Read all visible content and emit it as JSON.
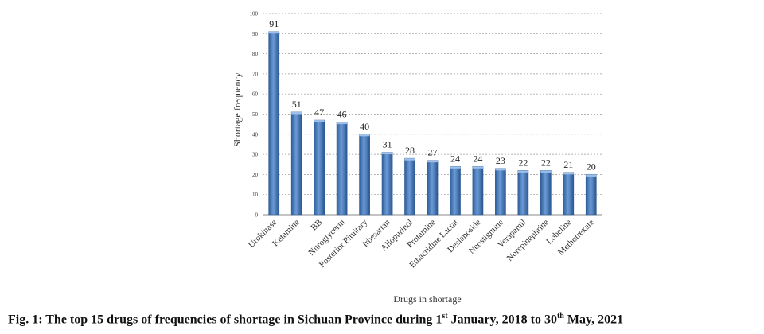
{
  "chart_data": {
    "type": "bar",
    "categories": [
      "Urokinase",
      "Ketamine",
      "BB",
      "Nitroglycerin",
      "Posterior Pituitary",
      "Irbesartan",
      "Allopurinol",
      "Protamine",
      "Ethacridine Lactat",
      "Deslanoside",
      "Neostigmine",
      "Verapamil",
      "Norepinephrine",
      "Lobeline",
      "Methotrexate"
    ],
    "values": [
      91,
      51,
      47,
      46,
      40,
      31,
      28,
      27,
      24,
      24,
      23,
      22,
      22,
      21,
      20
    ],
    "xlabel": "Drugs in shortage",
    "ylabel": "Shortage frequency",
    "ylim": [
      0,
      100
    ],
    "yticks": [
      0,
      10,
      20,
      30,
      40,
      50,
      60,
      70,
      80,
      90,
      100
    ],
    "grid": true,
    "bar_color": "#4f81bd",
    "bar_edge_color": "#2f5a8f"
  },
  "caption": {
    "prefix": "Fig. 1: The top 15 drugs of frequencies of shortage in Sichuan Province during 1",
    "sup1": "st",
    "middle": " January, 2018 to 30",
    "sup2": "th",
    "suffix": " May, 2021"
  }
}
